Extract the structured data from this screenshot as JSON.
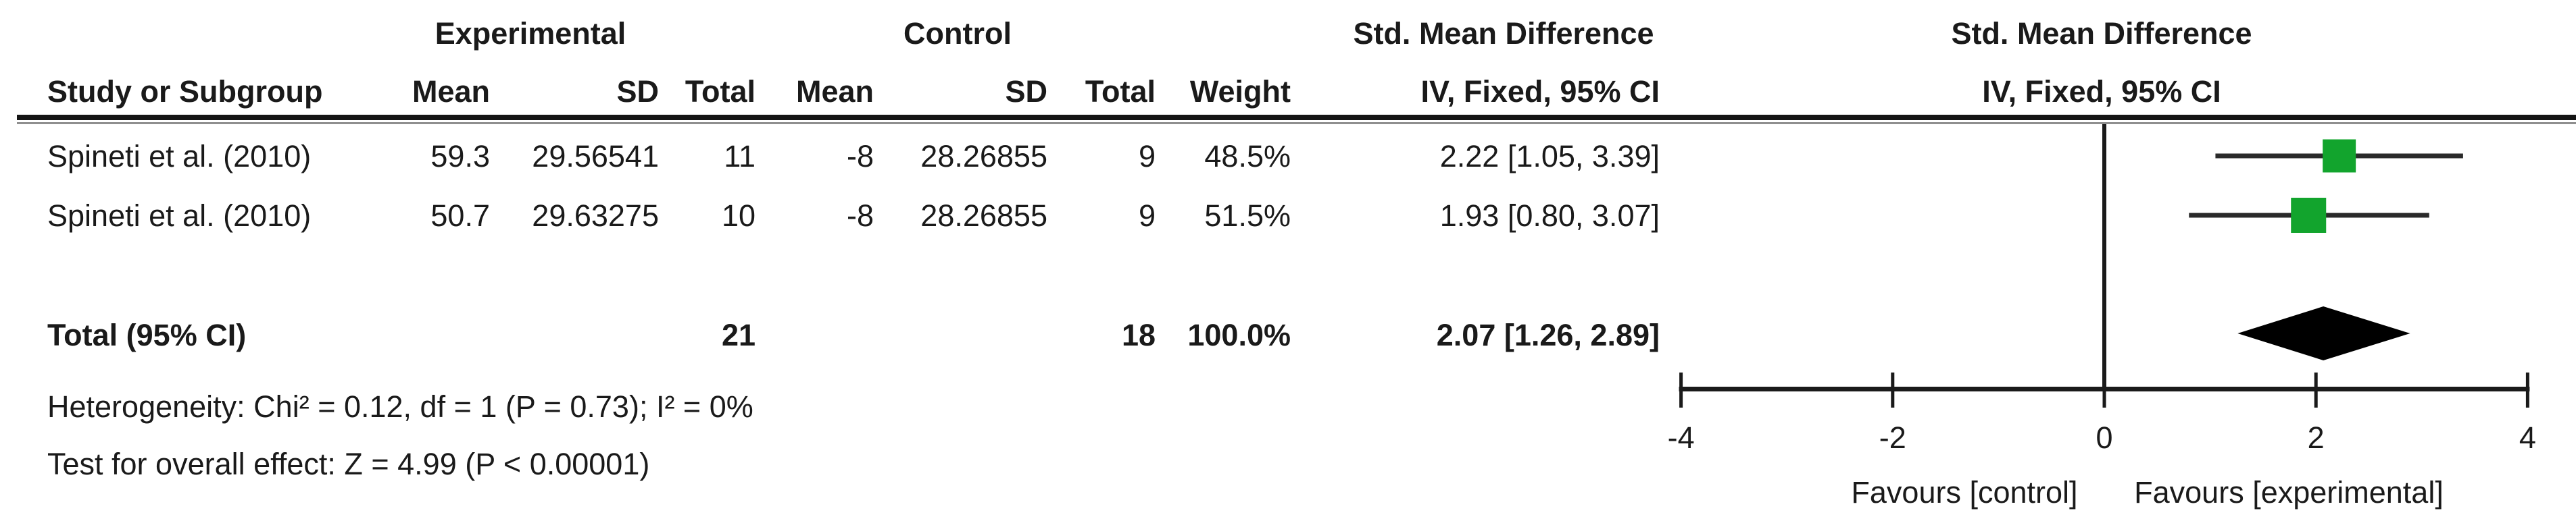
{
  "table": {
    "headers": {
      "group_experimental": "Experimental",
      "group_control": "Control",
      "smd_col_title": "Std. Mean Difference",
      "smd_plot_title": "Std. Mean Difference",
      "study": "Study or Subgroup",
      "mean_exp": "Mean",
      "sd_exp": "SD",
      "total_exp": "Total",
      "mean_ctrl": "Mean",
      "sd_ctrl": "SD",
      "total_ctrl": "Total",
      "weight": "Weight",
      "iv_col": "IV, Fixed, 95% CI",
      "iv_plot": "IV, Fixed, 95% CI"
    },
    "rows": [
      {
        "study": "Spineti et al. (2010)",
        "mean_exp": "59.3",
        "sd_exp": "29.56541",
        "total_exp": "11",
        "mean_ctrl": "-8",
        "sd_ctrl": "28.26855",
        "total_ctrl": "9",
        "weight": "48.5%",
        "ci": "2.22 [1.05, 3.39]"
      },
      {
        "study": "Spineti et al. (2010)",
        "mean_exp": "50.7",
        "sd_exp": "29.63275",
        "total_exp": "10",
        "mean_ctrl": "-8",
        "sd_ctrl": "28.26855",
        "total_ctrl": "9",
        "weight": "51.5%",
        "ci": "1.93 [0.80, 3.07]"
      }
    ],
    "total_row": {
      "label": "Total (95% CI)",
      "total_exp": "21",
      "total_ctrl": "18",
      "weight": "100.0%",
      "ci": "2.07 [1.26, 2.89]"
    },
    "footer": {
      "heterogeneity": "Heterogeneity: Chi² = 0.12, df = 1 (P = 0.73); I² = 0%",
      "overall_effect": "Test for overall effect: Z = 4.99 (P < 0.00001)"
    }
  },
  "chart_data": {
    "type": "scatter",
    "subtype": "forest-plot",
    "title": "Std. Mean Difference, IV, Fixed, 95% CI",
    "axis": {
      "min": -4,
      "max": 4,
      "ticks": [
        -4,
        -2,
        0,
        2,
        4
      ],
      "zero_line": 0,
      "grid": false
    },
    "studies": [
      {
        "label": "Spineti et al. (2010)",
        "smd": 2.22,
        "ci_low": 1.05,
        "ci_high": 3.39,
        "weight_pct": 48.5
      },
      {
        "label": "Spineti et al. (2010)",
        "smd": 1.93,
        "ci_low": 0.8,
        "ci_high": 3.07,
        "weight_pct": 51.5
      }
    ],
    "total": {
      "label": "Total (95% CI)",
      "smd": 2.07,
      "ci_low": 1.26,
      "ci_high": 2.89,
      "weight_pct": 100.0
    },
    "favours_left": "Favours [control]",
    "favours_right": "Favours [experimental]",
    "colors": {
      "marker_green": "#12a42d",
      "ci_line": "#2a2a2a",
      "diamond": "#000000",
      "axis": "#1a1a1a",
      "text": "#1a1a1a"
    }
  }
}
